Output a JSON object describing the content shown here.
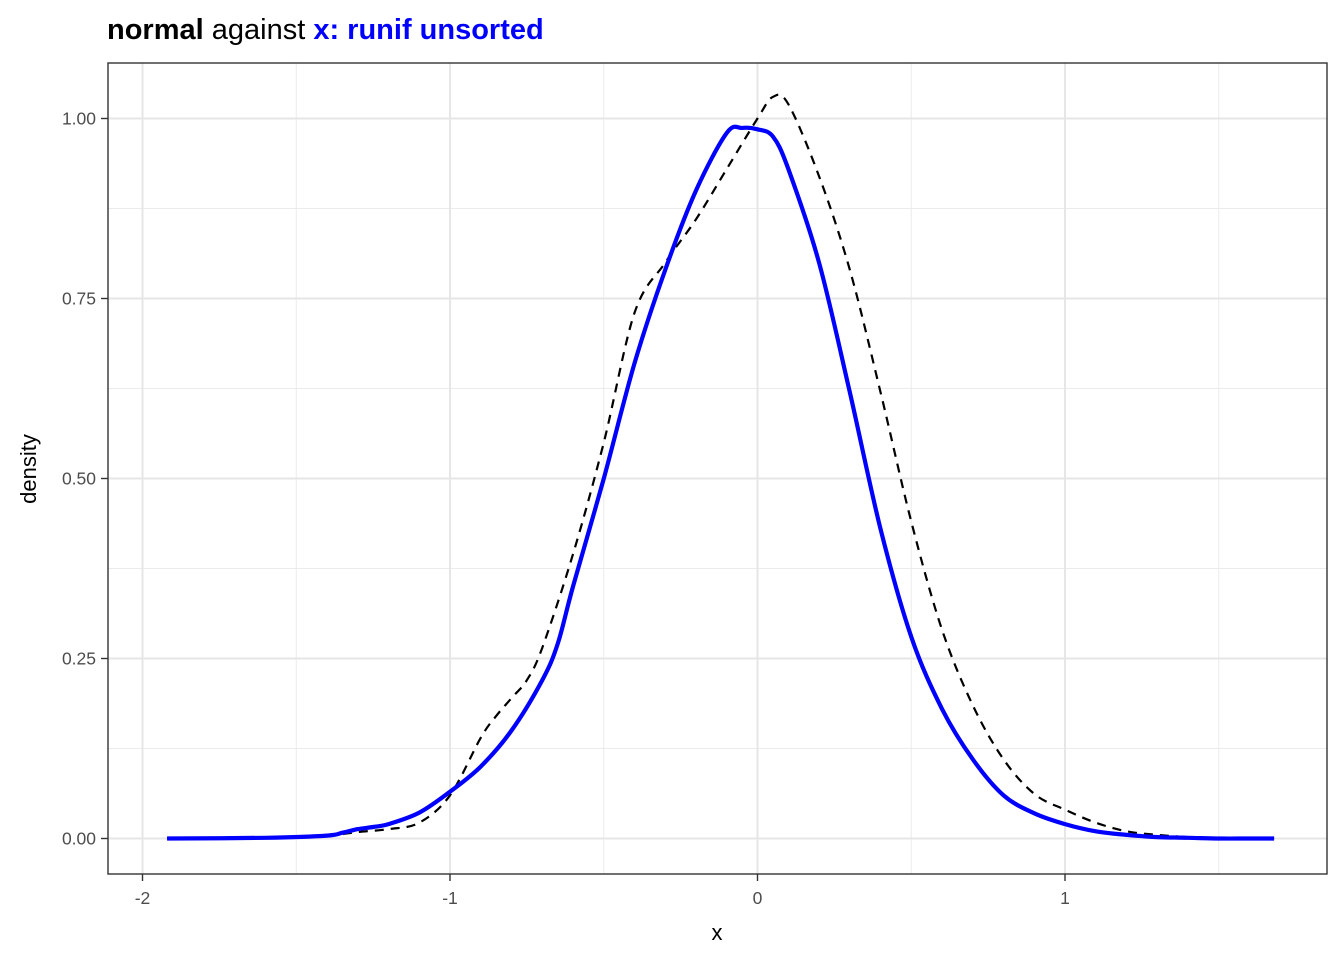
{
  "chart_data": {
    "type": "line",
    "title": {
      "part1": "normal",
      "part2": " against ",
      "part3": "x: runif unsorted"
    },
    "xlabel": "x",
    "ylabel": "density",
    "xlim": [
      -2.1,
      1.7
    ],
    "ylim": [
      -0.05,
      1.08
    ],
    "x_ticks": [
      -2,
      -1,
      0,
      1
    ],
    "x_tick_labels": [
      "-2",
      "-1",
      "0",
      "1"
    ],
    "y_ticks": [
      0.0,
      0.25,
      0.5,
      0.75,
      1.0
    ],
    "y_tick_labels": [
      "0.00",
      "0.25",
      "0.50",
      "0.75",
      "1.00"
    ],
    "x_minor": [
      -1.5,
      -0.5,
      0.5,
      1.5
    ],
    "y_minor": [
      0.125,
      0.375,
      0.625,
      0.875
    ],
    "grid": true,
    "series": [
      {
        "color": "#000000",
        "style": "dashed",
        "x": [
          -1.92,
          -1.6,
          -1.4,
          -1.3,
          -1.2,
          -1.1,
          -1.0,
          -0.9,
          -0.85,
          -0.8,
          -0.75,
          -0.7,
          -0.6,
          -0.5,
          -0.4,
          -0.3,
          -0.2,
          -0.1,
          0.0,
          0.05,
          0.1,
          0.2,
          0.3,
          0.4,
          0.5,
          0.6,
          0.7,
          0.8,
          0.9,
          1.0,
          1.1,
          1.2,
          1.3,
          1.4,
          1.5,
          1.6,
          1.68
        ],
        "y": [
          0.0,
          0.001,
          0.004,
          0.009,
          0.013,
          0.022,
          0.06,
          0.14,
          0.17,
          0.195,
          0.22,
          0.265,
          0.395,
          0.55,
          0.73,
          0.8,
          0.86,
          0.93,
          1.0,
          1.03,
          1.02,
          0.92,
          0.79,
          0.62,
          0.44,
          0.29,
          0.185,
          0.11,
          0.062,
          0.04,
          0.022,
          0.01,
          0.005,
          0.002,
          0.001,
          0.0,
          0.0
        ]
      },
      {
        "color": "#0000ff",
        "style": "solid",
        "x": [
          -1.92,
          -1.6,
          -1.4,
          -1.35,
          -1.3,
          -1.25,
          -1.2,
          -1.1,
          -1.0,
          -0.9,
          -0.8,
          -0.7,
          -0.65,
          -0.6,
          -0.5,
          -0.4,
          -0.3,
          -0.2,
          -0.1,
          -0.05,
          0.0,
          0.05,
          0.1,
          0.2,
          0.3,
          0.4,
          0.5,
          0.6,
          0.7,
          0.8,
          0.9,
          1.0,
          1.1,
          1.2,
          1.3,
          1.4,
          1.5,
          1.6,
          1.68
        ],
        "y": [
          0.0,
          0.001,
          0.004,
          0.008,
          0.013,
          0.016,
          0.02,
          0.036,
          0.065,
          0.1,
          0.15,
          0.22,
          0.27,
          0.35,
          0.5,
          0.66,
          0.79,
          0.9,
          0.98,
          0.987,
          0.985,
          0.975,
          0.93,
          0.8,
          0.62,
          0.43,
          0.28,
          0.18,
          0.11,
          0.06,
          0.035,
          0.02,
          0.01,
          0.005,
          0.002,
          0.001,
          0.0,
          0.0,
          0.0
        ]
      }
    ]
  }
}
